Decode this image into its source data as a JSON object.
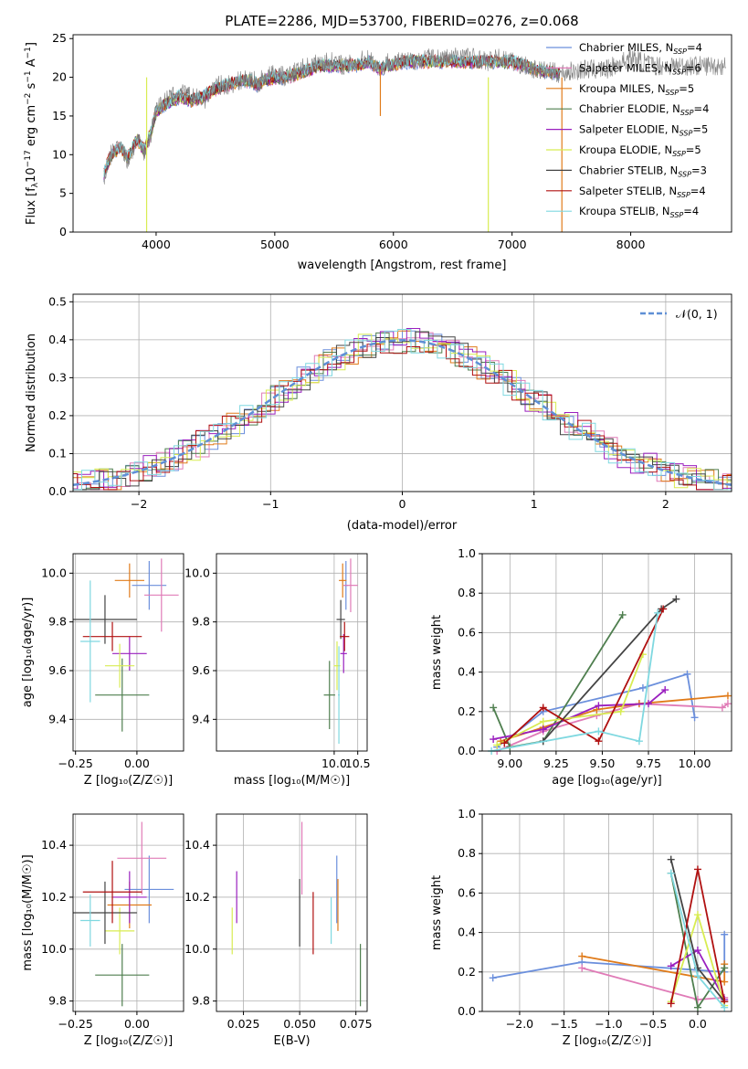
{
  "colors": {
    "Chabrier MILES": "#6b8fdc",
    "Salpeter MILES": "#e07bb7",
    "Kroupa MILES": "#e07b1a",
    "Chabrier ELODIE": "#4f7f4f",
    "Salpeter ELODIE": "#9a1fbf",
    "Kroupa ELODIE": "#d8ec52",
    "Chabrier STELIB": "#444444",
    "Salpeter STELIB": "#b01010",
    "Kroupa STELIB": "#7fd8e0"
  },
  "chart_data": [
    {
      "id": "spectrum",
      "type": "line",
      "title": "PLATE=2286, MJD=53700, FIBERID=0276, z=0.068",
      "xlabel": "wavelength [Angstrom, rest frame]",
      "ylabel": "Flux [f_λ10^{-17} erg cm^{-2} s^{-1} A^{-1}]",
      "xlim": [
        3300,
        8850
      ],
      "ylim": [
        0,
        25.5
      ],
      "xticks": [
        "4000",
        "5000",
        "6000",
        "7000",
        "8000"
      ],
      "yticks": [
        "0",
        "5",
        "10",
        "15",
        "20",
        "25"
      ],
      "grid": false,
      "legend_position": "right",
      "legend": [
        "Chabrier MILES, N_SSP=4",
        "Salpeter MILES, N_SSP=6",
        "Kroupa MILES, N_SSP=5",
        "Chabrier ELODIE, N_SSP=4",
        "Salpeter ELODIE, N_SSP=5",
        "Kroupa ELODIE, N_SSP=5",
        "Chabrier STELIB, N_SSP=3",
        "Salpeter STELIB, N_SSP=4",
        "Kroupa STELIB, N_SSP=4"
      ],
      "series": [
        {
          "name": "data",
          "color": "#808080",
          "x": [
            3560,
            3620,
            3700,
            3760,
            3840,
            3900,
            3960,
            4000,
            4080,
            4200,
            4300,
            4400,
            4500,
            4600,
            4700,
            4800,
            4860,
            4900,
            5000,
            5100,
            5200,
            5300,
            5400,
            5500,
            5600,
            5700,
            5800,
            5890,
            5950,
            6100,
            6300,
            6500,
            6563,
            6700,
            6800,
            6900,
            7000,
            7200,
            7400,
            7600,
            7800,
            8000,
            8200,
            8400,
            8600,
            8800
          ],
          "y": [
            7,
            10,
            11.5,
            9,
            12,
            10,
            13,
            16,
            17,
            18,
            17.5,
            17,
            19,
            19,
            19.5,
            20,
            19,
            20,
            20.5,
            20,
            21,
            21.5,
            22,
            22,
            21.5,
            22,
            22.5,
            21,
            22,
            22,
            22.5,
            22.5,
            23,
            22.5,
            22,
            22.5,
            22,
            21,
            20.5,
            21,
            21,
            22.5,
            21.5,
            21.5,
            21.5,
            21.5
          ]
        },
        {
          "name": "model",
          "color": "#7fd8e0",
          "x": [
            3560,
            3620,
            3700,
            3760,
            3840,
            3900,
            3960,
            4000,
            4080,
            4200,
            4300,
            4400,
            4500,
            4600,
            4700,
            4800,
            4860,
            4900,
            5000,
            5100,
            5200,
            5300,
            5400,
            5500,
            5600,
            5700,
            5800,
            5890,
            5950,
            6100,
            6300,
            6500,
            6563,
            6700,
            6800,
            6900,
            7000,
            7200,
            7400
          ],
          "y": [
            7.5,
            10,
            11,
            9.5,
            12,
            10.5,
            13,
            15.5,
            16.5,
            17.5,
            17,
            17.5,
            18.5,
            19,
            19.5,
            19.5,
            19,
            19.5,
            20,
            20,
            20.5,
            21,
            21.5,
            21.5,
            21.5,
            21.5,
            22,
            21,
            21.5,
            22,
            22,
            22,
            22,
            22,
            22,
            22,
            22,
            21,
            20.5
          ]
        }
      ]
    },
    {
      "id": "residuals",
      "type": "histogram",
      "xlabel": "(data-model)/error",
      "ylabel": "Normed distribution",
      "xlim": [
        -2.5,
        2.5
      ],
      "ylim": [
        0,
        0.52
      ],
      "xticks": [
        "−2",
        "−1",
        "0",
        "1",
        "2"
      ],
      "yticks": [
        "0.0",
        "0.1",
        "0.2",
        "0.3",
        "0.4",
        "0.5"
      ],
      "grid": true,
      "legend": [
        "𝒩(0, 1)"
      ],
      "legend_position": "top-right",
      "normal_curve": {
        "name": "𝒩(0, 1)",
        "mean": 0,
        "sigma": 1,
        "color": "#5f8fd6"
      }
    },
    {
      "id": "Z-age",
      "type": "errorbar",
      "xlabel": "Z [log₁₀(Z/Z☉)]",
      "ylabel": "age  [log₁₀(age/yr)]",
      "xlim": [
        -0.26,
        0.19
      ],
      "ylim": [
        9.27,
        10.08
      ],
      "xticks": [
        "−0.25",
        "0.00"
      ],
      "yticks": [
        "9.4",
        "9.6",
        "9.8",
        "10.0"
      ],
      "grid": true,
      "points": [
        {
          "model": "Chabrier MILES",
          "x": 0.05,
          "xerr": 0.07,
          "y": 9.95,
          "yerr": 0.1
        },
        {
          "model": "Salpeter MILES",
          "x": 0.1,
          "xerr": 0.07,
          "y": 9.91,
          "yerr": 0.15
        },
        {
          "model": "Kroupa MILES",
          "x": -0.03,
          "xerr": 0.06,
          "y": 9.97,
          "yerr": 0.07
        },
        {
          "model": "Chabrier ELODIE",
          "x": -0.06,
          "xerr": 0.11,
          "y": 9.5,
          "yerr": 0.15
        },
        {
          "model": "Salpeter ELODIE",
          "x": -0.03,
          "xerr": 0.07,
          "y": 9.67,
          "yerr": 0.07
        },
        {
          "model": "Kroupa ELODIE",
          "x": -0.07,
          "xerr": 0.06,
          "y": 9.62,
          "yerr": 0.09
        },
        {
          "model": "Chabrier STELIB",
          "x": -0.13,
          "xerr": 0.13,
          "y": 9.81,
          "yerr": 0.1
        },
        {
          "model": "Salpeter STELIB",
          "x": -0.1,
          "xerr": 0.12,
          "y": 9.74,
          "yerr": 0.06
        },
        {
          "model": "Kroupa STELIB",
          "x": -0.19,
          "xerr": 0.04,
          "y": 9.72,
          "yerr": 0.25
        }
      ]
    },
    {
      "id": "mass-age",
      "type": "errorbar",
      "xlabel": "mass [log₁₀(M/M☉)]",
      "ylabel": "",
      "xlim": [
        7.5,
        10.7
      ],
      "ylim": [
        9.27,
        10.08
      ],
      "xticks": [
        "10.0",
        "10.5"
      ],
      "yticks": [
        "9.4",
        "9.6",
        "9.8",
        "10.0"
      ],
      "grid": true,
      "points": [
        {
          "model": "Chabrier MILES",
          "x": 10.25,
          "xerr": 0.05,
          "y": 9.95,
          "yerr": 0.1
        },
        {
          "model": "Salpeter MILES",
          "x": 10.35,
          "xerr": 0.15,
          "y": 9.95,
          "yerr": 0.11
        },
        {
          "model": "Kroupa MILES",
          "x": 10.18,
          "xerr": 0.08,
          "y": 9.97,
          "yerr": 0.07
        },
        {
          "model": "Chabrier ELODIE",
          "x": 9.9,
          "xerr": 0.12,
          "y": 9.5,
          "yerr": 0.14
        },
        {
          "model": "Salpeter ELODIE",
          "x": 10.2,
          "xerr": 0.07,
          "y": 9.67,
          "yerr": 0.08
        },
        {
          "model": "Kroupa ELODIE",
          "x": 10.06,
          "xerr": 0.07,
          "y": 9.62,
          "yerr": 0.1
        },
        {
          "model": "Chabrier STELIB",
          "x": 10.14,
          "xerr": 0.09,
          "y": 9.81,
          "yerr": 0.08
        },
        {
          "model": "Salpeter STELIB",
          "x": 10.22,
          "xerr": 0.1,
          "y": 9.74,
          "yerr": 0.06
        },
        {
          "model": "Kroupa STELIB",
          "x": 10.1,
          "xerr": 0.02,
          "y": 9.5,
          "yerr": 0.2
        }
      ]
    },
    {
      "id": "age-weight",
      "type": "line",
      "xlabel": "age  [log₁₀(age/yr)]",
      "ylabel": "mass weight",
      "xlim": [
        8.85,
        10.2
      ],
      "ylim": [
        0,
        1
      ],
      "xticks": [
        "9.00",
        "9.25",
        "9.50",
        "9.75",
        "10.00"
      ],
      "yticks": [
        "0.0",
        "0.2",
        "0.4",
        "0.6",
        "0.8",
        "1.0"
      ],
      "grid": true,
      "series": [
        {
          "name": "Chabrier MILES",
          "x": [
            8.93,
            9.18,
            9.72,
            9.96,
            10.0
          ],
          "y": [
            0.02,
            0.2,
            0.32,
            0.39,
            0.17
          ]
        },
        {
          "name": "Salpeter MILES",
          "x": [
            8.93,
            9.18,
            9.47,
            9.7,
            10.15,
            10.18
          ],
          "y": [
            0.0,
            0.1,
            0.18,
            0.24,
            0.22,
            0.24
          ]
        },
        {
          "name": "Kroupa MILES",
          "x": [
            8.95,
            9.18,
            9.47,
            9.7,
            10.18
          ],
          "y": [
            0.05,
            0.12,
            0.21,
            0.24,
            0.28
          ]
        },
        {
          "name": "Chabrier ELODIE",
          "x": [
            8.91,
            9.0,
            9.18,
            9.61
          ],
          "y": [
            0.22,
            0.02,
            0.05,
            0.69
          ]
        },
        {
          "name": "Salpeter ELODIE",
          "x": [
            8.91,
            9.18,
            9.48,
            9.75,
            9.84
          ],
          "y": [
            0.06,
            0.11,
            0.23,
            0.24,
            0.31
          ]
        },
        {
          "name": "Kroupa ELODIE",
          "x": [
            8.93,
            9.18,
            9.6,
            9.72
          ],
          "y": [
            0.03,
            0.15,
            0.2,
            0.49
          ]
        },
        {
          "name": "Chabrier STELIB",
          "x": [
            9.18,
            9.82,
            9.9
          ],
          "y": [
            0.05,
            0.72,
            0.77
          ]
        },
        {
          "name": "Salpeter STELIB",
          "x": [
            8.97,
            9.18,
            9.48,
            9.83
          ],
          "y": [
            0.04,
            0.22,
            0.05,
            0.72
          ]
        },
        {
          "name": "Kroupa STELIB",
          "x": [
            8.9,
            9.48,
            9.7,
            9.8
          ],
          "y": [
            0.0,
            0.1,
            0.05,
            0.7
          ]
        }
      ]
    },
    {
      "id": "Z-mass",
      "type": "errorbar",
      "xlabel": "Z [log₁₀(Z/Z☉)]",
      "ylabel": "mass [log₁₀(M/M☉)]",
      "xlim": [
        -0.26,
        0.19
      ],
      "ylim": [
        9.76,
        10.52
      ],
      "xticks": [
        "−0.25",
        "0.00"
      ],
      "yticks": [
        "9.8",
        "10.0",
        "10.2",
        "10.4"
      ],
      "grid": true,
      "points": [
        {
          "model": "Chabrier MILES",
          "x": 0.05,
          "xerr": 0.1,
          "y": 10.23,
          "yerr": 0.13
        },
        {
          "model": "Salpeter MILES",
          "x": 0.02,
          "xerr": 0.1,
          "y": 10.35,
          "yerr": 0.14
        },
        {
          "model": "Kroupa MILES",
          "x": -0.03,
          "xerr": 0.09,
          "y": 10.17,
          "yerr": 0.09
        },
        {
          "model": "Chabrier ELODIE",
          "x": -0.06,
          "xerr": 0.11,
          "y": 9.9,
          "yerr": 0.12
        },
        {
          "model": "Salpeter ELODIE",
          "x": -0.03,
          "xerr": 0.07,
          "y": 10.2,
          "yerr": 0.1
        },
        {
          "model": "Kroupa ELODIE",
          "x": -0.07,
          "xerr": 0.06,
          "y": 10.07,
          "yerr": 0.09
        },
        {
          "model": "Chabrier STELIB",
          "x": -0.13,
          "xerr": 0.13,
          "y": 10.14,
          "yerr": 0.12
        },
        {
          "model": "Salpeter STELIB",
          "x": -0.1,
          "xerr": 0.12,
          "y": 10.22,
          "yerr": 0.12
        },
        {
          "model": "Kroupa STELIB",
          "x": -0.19,
          "xerr": 0.04,
          "y": 10.11,
          "yerr": 0.1
        }
      ]
    },
    {
      "id": "EBV-mass",
      "type": "errorbar",
      "xlabel": "E(B-V)",
      "ylabel": "",
      "xlim": [
        0.013,
        0.08
      ],
      "ylim": [
        9.76,
        10.52
      ],
      "xticks": [
        "0.025",
        "0.050",
        "0.075"
      ],
      "yticks": [
        "9.8",
        "10.0",
        "10.2",
        "10.4"
      ],
      "grid": true,
      "points": [
        {
          "model": "Chabrier MILES",
          "x": 0.0665,
          "xerr": 0,
          "y": 10.23,
          "yerr": 0.13
        },
        {
          "model": "Salpeter MILES",
          "x": 0.051,
          "xerr": 0,
          "y": 10.35,
          "yerr": 0.14
        },
        {
          "model": "Kroupa MILES",
          "x": 0.067,
          "xerr": 0,
          "y": 10.17,
          "yerr": 0.1
        },
        {
          "model": "Chabrier ELODIE",
          "x": 0.077,
          "xerr": 0,
          "y": 9.9,
          "yerr": 0.12
        },
        {
          "model": "Salpeter ELODIE",
          "x": 0.022,
          "xerr": 0,
          "y": 10.2,
          "yerr": 0.1
        },
        {
          "model": "Kroupa ELODIE",
          "x": 0.02,
          "xerr": 0,
          "y": 10.07,
          "yerr": 0.09
        },
        {
          "model": "Chabrier STELIB",
          "x": 0.05,
          "xerr": 0,
          "y": 10.14,
          "yerr": 0.13
        },
        {
          "model": "Salpeter STELIB",
          "x": 0.056,
          "xerr": 0,
          "y": 10.1,
          "yerr": 0.12
        },
        {
          "model": "Kroupa STELIB",
          "x": 0.064,
          "xerr": 0,
          "y": 10.11,
          "yerr": 0.09
        }
      ]
    },
    {
      "id": "Z-weight",
      "type": "line",
      "xlabel": "Z [log₁₀(Z/Z☉)]",
      "ylabel": "mass weight",
      "xlim": [
        -2.42,
        0.38
      ],
      "ylim": [
        0,
        1
      ],
      "xticks": [
        "−2.0",
        "−1.5",
        "−1.0",
        "−0.5",
        "0.0"
      ],
      "yticks": [
        "0.0",
        "0.2",
        "0.4",
        "0.6",
        "0.8",
        "1.0"
      ],
      "grid": true,
      "series": [
        {
          "name": "Chabrier MILES",
          "x": [
            -2.3,
            -1.3,
            0.3,
            0.3
          ],
          "y": [
            0.17,
            0.25,
            0.2,
            0.39
          ]
        },
        {
          "name": "Salpeter MILES",
          "x": [
            -1.3,
            0.0,
            0.3
          ],
          "y": [
            0.22,
            0.06,
            0.07
          ]
        },
        {
          "name": "Kroupa MILES",
          "x": [
            -1.3,
            0.3,
            0.3
          ],
          "y": [
            0.28,
            0.15,
            0.24
          ]
        },
        {
          "name": "Chabrier ELODIE",
          "x": [
            -0.3,
            0.0,
            0.3
          ],
          "y": [
            0.7,
            0.02,
            0.22
          ]
        },
        {
          "name": "Salpeter ELODIE",
          "x": [
            -0.3,
            0.0,
            0.3
          ],
          "y": [
            0.23,
            0.31,
            0.06
          ]
        },
        {
          "name": "Kroupa ELODIE",
          "x": [
            -0.3,
            0.0,
            0.3
          ],
          "y": [
            0.05,
            0.49,
            0.03
          ]
        },
        {
          "name": "Chabrier STELIB",
          "x": [
            -0.3,
            0.0,
            0.3
          ],
          "y": [
            0.77,
            0.22,
            0.05
          ]
        },
        {
          "name": "Salpeter STELIB",
          "x": [
            -0.3,
            0.0,
            0.3
          ],
          "y": [
            0.04,
            0.72,
            0.05
          ]
        },
        {
          "name": "Kroupa STELIB",
          "x": [
            -0.3,
            0.0,
            0.3
          ],
          "y": [
            0.7,
            0.18,
            0.02
          ]
        }
      ]
    }
  ]
}
